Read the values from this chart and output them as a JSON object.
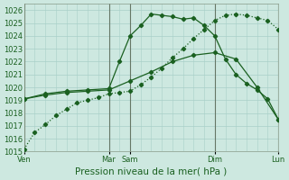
{
  "title": "Pression niveau de la mer( hPa )",
  "background_color": "#cde8e0",
  "grid_color": "#a8cfc8",
  "line_color": "#1a6020",
  "ylim": [
    1015,
    1026.5
  ],
  "xlim": [
    0,
    24
  ],
  "yticks": [
    1015,
    1016,
    1017,
    1018,
    1019,
    1020,
    1021,
    1022,
    1023,
    1024,
    1025,
    1026
  ],
  "day_vlines": [
    0,
    8,
    10,
    18,
    24
  ],
  "day_labels": [
    [
      "Ven",
      0
    ],
    [
      "Mar",
      8
    ],
    [
      "Sam",
      10
    ],
    [
      "Dim",
      18
    ],
    [
      "Lun",
      24
    ]
  ],
  "line1_dotted": {
    "x": [
      0,
      1,
      2,
      3,
      4,
      5,
      6,
      7,
      8,
      9,
      10,
      11,
      12,
      13,
      14,
      15,
      16,
      17,
      18,
      19,
      20,
      21,
      22,
      23,
      24
    ],
    "y": [
      1015.2,
      1016.5,
      1017.1,
      1017.8,
      1018.3,
      1018.8,
      1019.0,
      1019.2,
      1019.5,
      1019.6,
      1019.7,
      1020.2,
      1020.8,
      1021.5,
      1022.3,
      1023.0,
      1023.8,
      1024.5,
      1025.2,
      1025.6,
      1025.7,
      1025.6,
      1025.4,
      1025.2,
      1024.5
    ]
  },
  "line2_solid_high": {
    "x": [
      0,
      2,
      4,
      6,
      8,
      9,
      10,
      11,
      12,
      13,
      14,
      15,
      16,
      17,
      18,
      19,
      20,
      21,
      22,
      23,
      24
    ],
    "y": [
      1019.1,
      1019.5,
      1019.7,
      1019.8,
      1019.9,
      1022.0,
      1024.0,
      1024.8,
      1025.7,
      1025.6,
      1025.5,
      1025.3,
      1025.4,
      1024.8,
      1024.0,
      1022.2,
      1021.0,
      1020.3,
      1019.8,
      1019.1,
      1017.5
    ]
  },
  "line3_solid_low": {
    "x": [
      0,
      2,
      4,
      6,
      8,
      10,
      12,
      14,
      16,
      18,
      20,
      22,
      24
    ],
    "y": [
      1019.1,
      1019.4,
      1019.6,
      1019.7,
      1019.8,
      1020.5,
      1021.2,
      1022.0,
      1022.5,
      1022.7,
      1022.2,
      1020.0,
      1017.5
    ]
  },
  "fontsize_tick": 6,
  "fontsize_xlabel": 7.5
}
